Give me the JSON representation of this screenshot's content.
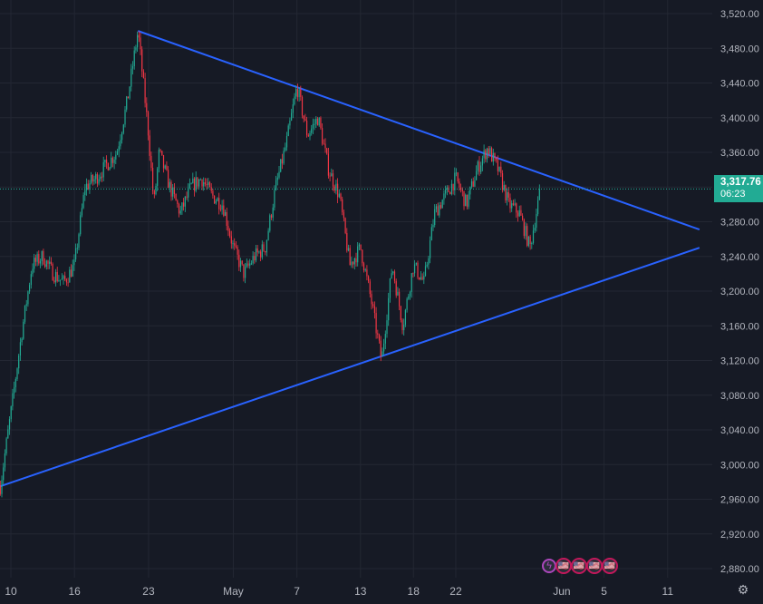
{
  "colors": {
    "background": "#161a25",
    "grid": "#232733",
    "axis_text": "#b2b5be",
    "up_candle": "#22ab94",
    "down_candle": "#f23645",
    "trendline": "#2962ff",
    "price_line": "#22ab94",
    "price_badge": "#22ab94"
  },
  "price_badge": {
    "price": "3,317.76",
    "countdown": "06:23"
  },
  "events": {
    "icons": [
      "lightning-icon",
      "us-flag-icon",
      "us-flag-icon",
      "us-flag-icon",
      "us-flag-icon"
    ],
    "flag_glyph": "🇺🇸",
    "lightning_glyph": "ϟ"
  },
  "settings_icon": "gear-icon",
  "chart_data": {
    "type": "candlestick",
    "title": "",
    "xlabel": "",
    "ylabel": "",
    "ylim": [
      2840,
      3540
    ],
    "y_ticks": [
      "3,520.00",
      "3,480.00",
      "3,440.00",
      "3,400.00",
      "3,360.00",
      "3,320.00",
      "3,280.00",
      "3,240.00",
      "3,200.00",
      "3,160.00",
      "3,120.00",
      "3,080.00",
      "3,040.00",
      "3,000.00",
      "2,960.00",
      "2,920.00",
      "2,880.00"
    ],
    "y_tick_values": [
      3520,
      3480,
      3440,
      3400,
      3360,
      3320,
      3280,
      3240,
      3200,
      3160,
      3120,
      3080,
      3040,
      3000,
      2960,
      2920,
      2880
    ],
    "x_ticks": [
      "10",
      "16",
      "23",
      "May",
      "7",
      "13",
      "18",
      "22",
      "Jun",
      "5",
      "11"
    ],
    "x_tick_dates": [
      "2025-04-10",
      "2025-04-16",
      "2025-04-23",
      "2025-05-01",
      "2025-05-07",
      "2025-05-13",
      "2025-05-18",
      "2025-05-22",
      "2025-06-01",
      "2025-06-05",
      "2025-06-11"
    ],
    "grid": true,
    "last_price": 3317.76,
    "price_path": [
      [
        "2025-04-09",
        2975
      ],
      [
        "2025-04-10",
        3060
      ],
      [
        "2025-04-11",
        3150
      ],
      [
        "2025-04-12",
        3230
      ],
      [
        "2025-04-13",
        3240
      ],
      [
        "2025-04-14",
        3220
      ],
      [
        "2025-04-15",
        3210
      ],
      [
        "2025-04-16",
        3230
      ],
      [
        "2025-04-17",
        3320
      ],
      [
        "2025-04-18",
        3330
      ],
      [
        "2025-04-20",
        3360
      ],
      [
        "2025-04-21",
        3420
      ],
      [
        "2025-04-22",
        3500
      ],
      [
        "2025-04-22T12",
        3440
      ],
      [
        "2025-04-23",
        3380
      ],
      [
        "2025-04-23T12",
        3300
      ],
      [
        "2025-04-24",
        3360
      ],
      [
        "2025-04-25",
        3320
      ],
      [
        "2025-04-26",
        3290
      ],
      [
        "2025-04-27",
        3320
      ],
      [
        "2025-04-28",
        3330
      ],
      [
        "2025-04-29",
        3310
      ],
      [
        "2025-04-30",
        3300
      ],
      [
        "2025-05-01",
        3250
      ],
      [
        "2025-05-02",
        3220
      ],
      [
        "2025-05-03",
        3240
      ],
      [
        "2025-05-04",
        3250
      ],
      [
        "2025-05-05",
        3320
      ],
      [
        "2025-05-06",
        3370
      ],
      [
        "2025-05-07",
        3436
      ],
      [
        "2025-05-08",
        3380
      ],
      [
        "2025-05-09",
        3400
      ],
      [
        "2025-05-10",
        3340
      ],
      [
        "2025-05-11",
        3310
      ],
      [
        "2025-05-12",
        3230
      ],
      [
        "2025-05-13",
        3250
      ],
      [
        "2025-05-14",
        3190
      ],
      [
        "2025-05-15",
        3120
      ],
      [
        "2025-05-16",
        3230
      ],
      [
        "2025-05-17",
        3160
      ],
      [
        "2025-05-18",
        3230
      ],
      [
        "2025-05-19",
        3210
      ],
      [
        "2025-05-20",
        3290
      ],
      [
        "2025-05-21",
        3310
      ],
      [
        "2025-05-22",
        3330
      ],
      [
        "2025-05-23",
        3300
      ],
      [
        "2025-05-24",
        3340
      ],
      [
        "2025-05-25",
        3365
      ],
      [
        "2025-05-26",
        3340
      ],
      [
        "2025-05-27",
        3300
      ],
      [
        "2025-05-28",
        3290
      ],
      [
        "2025-05-29",
        3250
      ],
      [
        "2025-05-30",
        3317.76
      ]
    ],
    "trendlines": [
      {
        "points": [
          [
            "2025-04-22",
            3500
          ],
          [
            "2025-06-14",
            3271
          ]
        ]
      },
      {
        "points": [
          [
            "2025-04-09",
            2975
          ],
          [
            "2025-06-14",
            3250
          ]
        ]
      }
    ]
  }
}
